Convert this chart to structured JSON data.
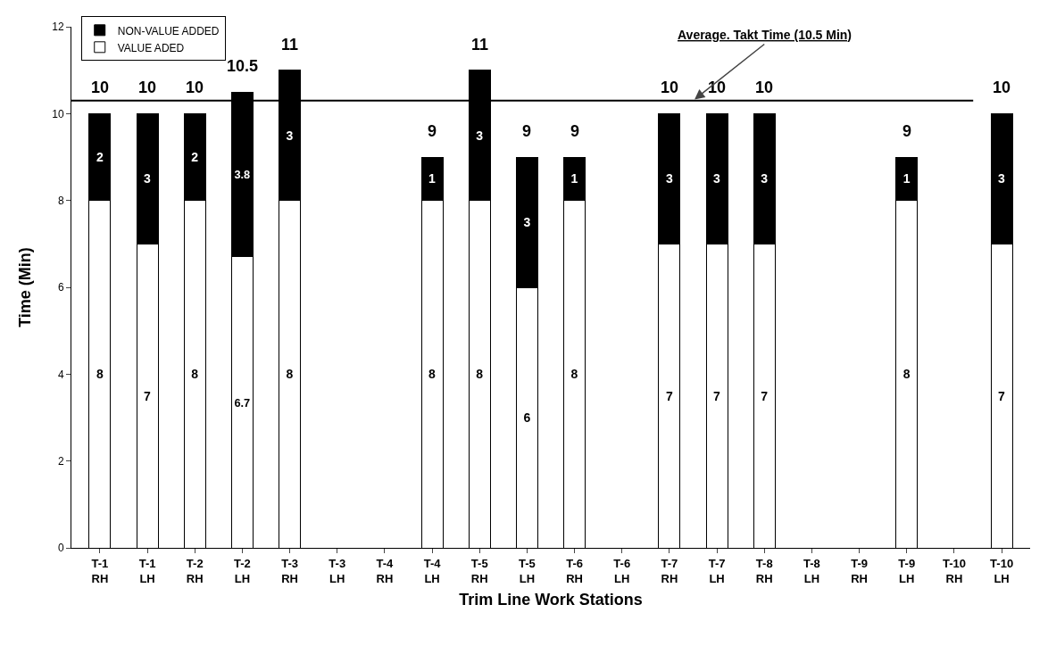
{
  "chart_data": {
    "type": "bar",
    "stacked": true,
    "xlabel": "Trim Line Work Stations",
    "ylabel": "Time (Min)",
    "categories": [
      "T-1\nRH",
      "T-1\nLH",
      "T-2\nRH",
      "T-2\nLH",
      "T-3\nRH",
      "T-3\nLH",
      "T-4\nRH",
      "T-4\nLH",
      "T-5\nRH",
      "T-5\nLH",
      "T-6\nRH",
      "T-6\nLH",
      "T-7\nRH",
      "T-7\nLH",
      "T-8\nRH",
      "T-8\nLH",
      "T-9\nRH",
      "T-9\nLH",
      "T-10\nRH",
      "T-10\nLH"
    ],
    "series": [
      {
        "name": "VALUE ADED",
        "color": "#ffffff",
        "values": [
          8,
          7,
          8,
          6.7,
          8,
          null,
          null,
          8,
          8,
          6,
          8,
          null,
          7,
          7,
          7,
          null,
          null,
          8,
          null,
          7
        ]
      },
      {
        "name": "NON-VALUE ADDED",
        "color": "#000000",
        "values": [
          2,
          3,
          2,
          3.8,
          3,
          null,
          null,
          1,
          3,
          3,
          1,
          null,
          3,
          3,
          3,
          null,
          null,
          1,
          null,
          3
        ]
      }
    ],
    "totals": [
      "10",
      "10",
      "10",
      "10.5",
      "11",
      null,
      null,
      "9",
      "11",
      "9",
      "9",
      null,
      "10",
      "10",
      "10",
      null,
      null,
      "9",
      null,
      "10"
    ],
    "data_labels": true,
    "ylim": [
      0,
      12
    ],
    "yticks": [
      0,
      2,
      4,
      6,
      8,
      10,
      12
    ],
    "grid": false,
    "legend": "top left",
    "ref_lines": [
      {
        "axis": "y",
        "value": 10.3,
        "label": "Average. Takt Time (10.5 Min)",
        "color": "#000000"
      }
    ]
  }
}
